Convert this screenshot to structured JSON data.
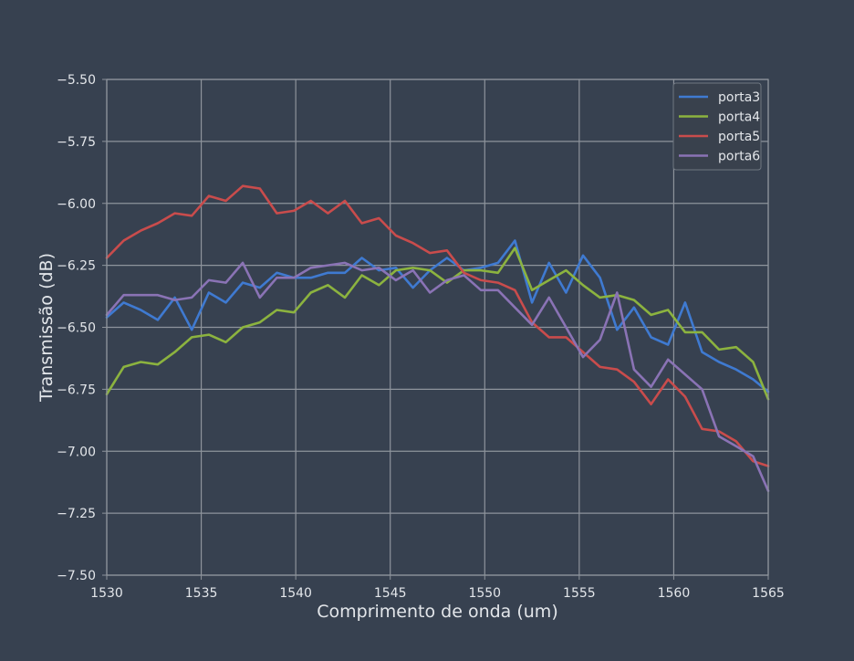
{
  "colors": {
    "background": "#374150",
    "axes_background": "#374150",
    "grid": "#8e949c",
    "text": "#e3e6ea",
    "legend_background": "#39414d",
    "legend_border": "#6f7781"
  },
  "chart_data": {
    "type": "line",
    "title": "",
    "xlabel": "Comprimento de onda (um)",
    "ylabel": "Transmissão (dB)",
    "xlim": [
      1530,
      1565
    ],
    "ylim": [
      -7.5,
      -5.5
    ],
    "xticks": [
      1530,
      1535,
      1540,
      1545,
      1550,
      1555,
      1560,
      1565
    ],
    "xtick_labels": [
      "1530",
      "1535",
      "1540",
      "1545",
      "1550",
      "1555",
      "1560",
      "1565"
    ],
    "yticks": [
      -7.5,
      -7.25,
      -7.0,
      -6.75,
      -6.5,
      -6.25,
      -6.0,
      -5.75,
      -5.5
    ],
    "ytick_labels": [
      "−7.50",
      "−7.25",
      "−7.00",
      "−6.75",
      "−6.50",
      "−6.25",
      "−6.00",
      "−5.75",
      "−5.50"
    ],
    "grid": true,
    "legend_position": "top-right",
    "x": [
      1530.0,
      1530.9,
      1531.8,
      1532.7,
      1533.6,
      1534.5,
      1535.4,
      1536.3,
      1537.2,
      1538.1,
      1539.0,
      1539.9,
      1540.8,
      1541.7,
      1542.6,
      1543.5,
      1544.4,
      1545.3,
      1546.2,
      1547.1,
      1548.0,
      1548.9,
      1549.8,
      1550.7,
      1551.6,
      1552.5,
      1553.4,
      1554.3,
      1555.2,
      1556.1,
      1557.0,
      1557.9,
      1558.8,
      1559.7,
      1560.6,
      1561.5,
      1562.4,
      1563.3,
      1564.2,
      1565.0
    ],
    "series": [
      {
        "name": "porta3",
        "color": "#3f7ad1",
        "values": [
          -6.46,
          -6.4,
          -6.43,
          -6.47,
          -6.38,
          -6.51,
          -6.36,
          -6.4,
          -6.32,
          -6.34,
          -6.28,
          -6.3,
          -6.3,
          -6.28,
          -6.28,
          -6.22,
          -6.27,
          -6.26,
          -6.34,
          -6.27,
          -6.22,
          -6.27,
          -6.26,
          -6.24,
          -6.15,
          -6.4,
          -6.24,
          -6.36,
          -6.21,
          -6.3,
          -6.51,
          -6.42,
          -6.54,
          -6.57,
          -6.4,
          -6.6,
          -6.64,
          -6.67,
          -6.71,
          -6.76
        ]
      },
      {
        "name": "porta4",
        "color": "#8cb33f",
        "values": [
          -6.77,
          -6.66,
          -6.64,
          -6.65,
          -6.6,
          -6.54,
          -6.53,
          -6.56,
          -6.5,
          -6.48,
          -6.43,
          -6.44,
          -6.36,
          -6.33,
          -6.38,
          -6.29,
          -6.33,
          -6.27,
          -6.26,
          -6.27,
          -6.32,
          -6.27,
          -6.27,
          -6.28,
          -6.18,
          -6.35,
          -6.31,
          -6.27,
          -6.33,
          -6.38,
          -6.37,
          -6.39,
          -6.45,
          -6.43,
          -6.52,
          -6.52,
          -6.59,
          -6.58,
          -6.64,
          -6.79
        ]
      },
      {
        "name": "porta5",
        "color": "#c94c4c",
        "values": [
          -6.22,
          -6.15,
          -6.11,
          -6.08,
          -6.04,
          -6.05,
          -5.97,
          -5.99,
          -5.93,
          -5.94,
          -6.04,
          -6.03,
          -5.99,
          -6.04,
          -5.99,
          -6.08,
          -6.06,
          -6.13,
          -6.16,
          -6.2,
          -6.19,
          -6.28,
          -6.31,
          -6.32,
          -6.35,
          -6.48,
          -6.54,
          -6.54,
          -6.6,
          -6.66,
          -6.67,
          -6.72,
          -6.81,
          -6.71,
          -6.78,
          -6.91,
          -6.92,
          -6.96,
          -7.04,
          -7.06
        ]
      },
      {
        "name": "porta6",
        "color": "#8a73b5",
        "values": [
          -6.45,
          -6.37,
          -6.37,
          -6.37,
          -6.39,
          -6.38,
          -6.31,
          -6.32,
          -6.24,
          -6.38,
          -6.3,
          -6.3,
          -6.26,
          -6.25,
          -6.24,
          -6.27,
          -6.26,
          -6.31,
          -6.27,
          -6.36,
          -6.31,
          -6.29,
          -6.35,
          -6.35,
          -6.42,
          -6.49,
          -6.38,
          -6.5,
          -6.62,
          -6.55,
          -6.36,
          -6.67,
          -6.74,
          -6.63,
          -6.69,
          -6.75,
          -6.94,
          -6.98,
          -7.02,
          -7.16
        ]
      }
    ]
  }
}
